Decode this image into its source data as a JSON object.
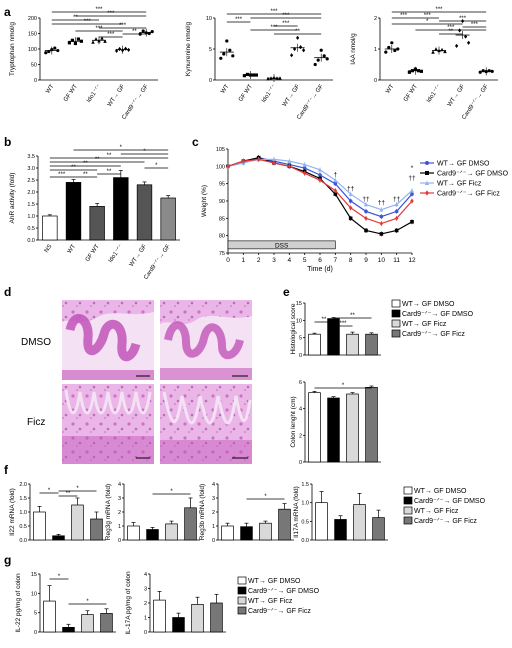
{
  "panels": {
    "a": "a",
    "b": "b",
    "c": "c",
    "d": "d",
    "e": "e",
    "f": "f",
    "g": "g"
  },
  "sig": {
    "three": "***",
    "two": "**",
    "one": "*",
    "dagger": "†",
    "ddagger": "††"
  },
  "colors": {
    "blue": "#3a55d8",
    "red": "#e23a3a",
    "lightblue": "#8fb4f0",
    "black": "#000000",
    "gray_light": "#d9d9d9",
    "gray_dark": "#777777",
    "he_purple": "#c254b8",
    "he_pink": "#eab6e8"
  },
  "chart_data": [
    {
      "type": "scatter",
      "panel": "a",
      "ylabel": "Tryptophan nmol/g",
      "categories": [
        "WT",
        "GF WT",
        "Ido1⁻ᐟ⁻",
        "WT→ GF",
        "Card9⁻ᐟ⁻→ GF"
      ],
      "yticks": [
        "0",
        "50",
        "100",
        "150",
        "200"
      ],
      "ylim": [
        0,
        200
      ],
      "means": [
        95,
        125,
        128,
        98,
        153
      ],
      "points": [
        [
          88,
          92,
          98,
          103,
          95
        ],
        [
          120,
          128,
          118,
          132,
          125
        ],
        [
          122,
          132,
          126,
          135,
          125
        ],
        [
          94,
          100,
          96,
          101,
          97
        ],
        [
          148,
          158,
          152,
          150,
          156
        ]
      ],
      "markers": [
        "circle",
        "square",
        "triangle",
        "diamond",
        "circle"
      ]
    },
    {
      "type": "scatter",
      "panel": "a",
      "ylabel": "Kynurenine nmol/g",
      "categories": [
        "WT",
        "GF WT",
        "Ido1⁻ᐟ⁻",
        "WT→ GF",
        "Card9⁻ᐟ⁻→ GF"
      ],
      "yticks": [
        "0",
        "5",
        "10"
      ],
      "ylim": [
        0,
        10
      ],
      "means": [
        4.5,
        0.8,
        0.3,
        5.2,
        3.6
      ],
      "points": [
        [
          3.5,
          4.2,
          6.3,
          4.8,
          3.9
        ],
        [
          0.7,
          0.9,
          0.8,
          0.8,
          0.8
        ],
        [
          0.2,
          0.3,
          0.4,
          0.3,
          0.3
        ],
        [
          4.0,
          5.0,
          6.8,
          5.3,
          4.8
        ],
        [
          2.5,
          3.2,
          4.8,
          3.9,
          3.4
        ]
      ],
      "markers": [
        "circle",
        "square",
        "triangle",
        "diamond",
        "circle"
      ]
    },
    {
      "type": "scatter",
      "panel": "a",
      "ylabel": "IAA nmol/g",
      "categories": [
        "WT",
        "GF WT",
        "Ido1⁻ᐟ⁻",
        "WT→ GF",
        "Card9⁻ᐟ⁻→ GF"
      ],
      "yticks": [
        "0",
        "1",
        "2"
      ],
      "ylim": [
        0,
        2
      ],
      "means": [
        1.0,
        0.3,
        0.95,
        1.45,
        0.28
      ],
      "points": [
        [
          0.9,
          1.05,
          1.2,
          0.95,
          1.0
        ],
        [
          0.25,
          0.3,
          0.35,
          0.3,
          0.28
        ],
        [
          0.9,
          1.0,
          0.95,
          0.98,
          0.92
        ],
        [
          1.1,
          1.6,
          1.9,
          1.4,
          1.2
        ],
        [
          0.25,
          0.3,
          0.27,
          0.3,
          0.28
        ]
      ],
      "markers": [
        "circle",
        "square",
        "triangle",
        "diamond",
        "circle"
      ]
    },
    {
      "type": "bar",
      "panel": "b",
      "ylabel": "AhR activity (fold)",
      "categories": [
        "NS",
        "WT",
        "GF WT",
        "Ido1⁻ᐟ⁻",
        "WT→ GF",
        "Card9⁻ᐟ⁻→ GF"
      ],
      "values": [
        1.0,
        2.4,
        1.4,
        2.6,
        2.3,
        1.75
      ],
      "errors": [
        0.05,
        0.12,
        0.12,
        0.3,
        0.12,
        0.1
      ],
      "yticks": [
        "0.0",
        "0.5",
        "1.0",
        "1.5",
        "2.0",
        "2.5",
        "3.0",
        "3.5"
      ],
      "ylim": [
        0,
        3.5
      ]
    },
    {
      "type": "line",
      "panel": "c",
      "ylabel": "Weight (%)",
      "xlabel": "Time (d)",
      "x": [
        0,
        1,
        2,
        3,
        4,
        5,
        6,
        7,
        8,
        9,
        10,
        11,
        12
      ],
      "xticks": [
        "0",
        "1",
        "2",
        "3",
        "4",
        "5",
        "6",
        "7",
        "8",
        "9",
        "10",
        "11",
        "12"
      ],
      "yticks": [
        "75",
        "80",
        "85",
        "90",
        "95",
        "100",
        "105"
      ],
      "ylim": [
        75,
        105
      ],
      "bar_label": "DSS",
      "bar_range": [
        0,
        7
      ],
      "series": [
        {
          "name": "WT→ GF DMSO",
          "color": "#3a55d8",
          "marker": "circle",
          "values": [
            100,
            101,
            102.5,
            101.5,
            100.5,
            99.5,
            97.5,
            95,
            90,
            87,
            85.5,
            87,
            92
          ]
        },
        {
          "name": "Card9⁻ᐟ⁻→ GF DMSO",
          "color": "#000000",
          "marker": "square",
          "values": [
            100,
            101.5,
            102.5,
            101,
            100,
            98.5,
            96.5,
            92,
            85,
            81.5,
            80.5,
            81.5,
            84
          ]
        },
        {
          "name": "WT→ GF Ficz",
          "color": "#8fb4f0",
          "marker": "triangle",
          "values": [
            100,
            101,
            102,
            102,
            101.5,
            100.5,
            99,
            96,
            92,
            89,
            87.5,
            89,
            93
          ]
        },
        {
          "name": "Card9⁻ᐟ⁻→ GF Ficz",
          "color": "#e23a3a",
          "marker": "diamond",
          "values": [
            100,
            101.5,
            102,
            101,
            100,
            98,
            96,
            93,
            88,
            85,
            83.5,
            85,
            90
          ]
        }
      ],
      "annotations": [
        {
          "x": 7,
          "y": 97,
          "text": "†"
        },
        {
          "x": 8,
          "y": 93,
          "text": "††"
        },
        {
          "x": 9,
          "y": 90,
          "text": "††"
        },
        {
          "x": 10,
          "y": 89,
          "text": "††"
        },
        {
          "x": 11,
          "y": 90,
          "text": "††"
        },
        {
          "x": 12,
          "y": 96,
          "text": "††"
        },
        {
          "x": 12,
          "y": 99,
          "text": "*"
        }
      ]
    },
    {
      "type": "bar",
      "panel": "e",
      "ylabel": "Histological score",
      "categories": [
        "WT→ GF DMSO",
        "Card9⁻ᐟ⁻→ GF DMSO",
        "WT→ GF Ficz",
        "Card9⁻ᐟ⁻→ GF Ficz"
      ],
      "values": [
        6,
        10.5,
        6,
        6
      ],
      "errors": [
        0.3,
        0.3,
        0.6,
        0.4
      ],
      "yticks": [
        "0",
        "5",
        "10",
        "15"
      ],
      "ylim": [
        0,
        15
      ],
      "legend": [
        "WT→ GF DMSO",
        "Card9⁻ᐟ⁻→ GF DMSO",
        "WT→ GF Ficz",
        "Card9⁻ᐟ⁻→ GF Ficz"
      ]
    },
    {
      "type": "bar",
      "panel": "e",
      "ylabel": "Colon lenght (cm)",
      "categories": [
        "WT→ GF DMSO",
        "Card9⁻ᐟ⁻→ GF DMSO",
        "WT→ GF Ficz",
        "Card9⁻ᐟ⁻→ GF Ficz"
      ],
      "values": [
        5.2,
        4.8,
        5.1,
        5.6
      ],
      "errors": [
        0.1,
        0.1,
        0.1,
        0.1
      ],
      "yticks": [
        "0",
        "2",
        "4",
        "6"
      ],
      "ylim": [
        0,
        6
      ]
    },
    {
      "type": "bar",
      "panel": "f",
      "ylabel": "Il22 mRNA (fold)",
      "categories": [
        "WT→ GF DMSO",
        "Card9⁻ᐟ⁻→ GF DMSO",
        "WT→ GF Ficz",
        "Card9⁻ᐟ⁻→ GF Ficz"
      ],
      "values": [
        1.0,
        0.15,
        1.25,
        0.75
      ],
      "errors": [
        0.2,
        0.05,
        0.25,
        0.25
      ],
      "yticks": [
        "0.0",
        "0.5",
        "1.0",
        "1.5",
        "2.0"
      ],
      "ylim": [
        0,
        2
      ]
    },
    {
      "type": "bar",
      "panel": "f",
      "ylabel": "Reg3g mRNA (fold)",
      "categories": [
        "WT→ GF DMSO",
        "Card9⁻ᐟ⁻→ GF DMSO",
        "WT→ GF Ficz",
        "Card9⁻ᐟ⁻→ GF Ficz"
      ],
      "values": [
        1.0,
        0.75,
        1.15,
        2.3
      ],
      "errors": [
        0.25,
        0.15,
        0.2,
        0.7
      ],
      "yticks": [
        "0",
        "1",
        "2",
        "3",
        "4"
      ],
      "ylim": [
        0,
        4
      ]
    },
    {
      "type": "bar",
      "panel": "f",
      "ylabel": "Reg3b mRNA (fold)",
      "categories": [
        "WT→ GF DMSO",
        "Card9⁻ᐟ⁻→ GF DMSO",
        "WT→ GF Ficz",
        "Card9⁻ᐟ⁻→ GF Ficz"
      ],
      "values": [
        1.0,
        0.95,
        1.2,
        2.2
      ],
      "errors": [
        0.2,
        0.25,
        0.15,
        0.4
      ],
      "yticks": [
        "0",
        "1",
        "2",
        "3",
        "4"
      ],
      "ylim": [
        0,
        4
      ]
    },
    {
      "type": "bar",
      "panel": "f",
      "ylabel": "Il17A mRNA (fold)",
      "categories": [
        "WT→ GF DMSO",
        "Card9⁻ᐟ⁻→ GF DMSO",
        "WT→ GF Ficz",
        "Card9⁻ᐟ⁻→ GF Ficz"
      ],
      "values": [
        1.0,
        0.55,
        0.95,
        0.6
      ],
      "errors": [
        0.3,
        0.1,
        0.3,
        0.2
      ],
      "yticks": [
        "0.0",
        "0.5",
        "1.0",
        "1.5"
      ],
      "ylim": [
        0,
        1.5
      ],
      "legend": [
        "WT→ GF DMSO",
        "Card9⁻ᐟ⁻→ GF DMSO",
        "WT→ GF Ficz",
        "Card9⁻ᐟ⁻→ GF Ficz"
      ]
    },
    {
      "type": "bar",
      "panel": "g",
      "ylabel": "IL-22 pg/mg of colon",
      "categories": [
        "WT→ GF DMSO",
        "Card9⁻ᐟ⁻→ GF DMSO",
        "WT→ GF Ficz",
        "Card9⁻ᐟ⁻→ GF Ficz"
      ],
      "values": [
        8,
        1.2,
        4.5,
        4.8
      ],
      "errors": [
        4,
        0.8,
        1,
        1.2
      ],
      "yticks": [
        "0",
        "5",
        "10",
        "15"
      ],
      "ylim": [
        0,
        15
      ]
    },
    {
      "type": "bar",
      "panel": "g",
      "ylabel": "IL-17A pg/mg of colon",
      "categories": [
        "WT→ GF DMSO",
        "Card9⁻ᐟ⁻→ GF DMSO",
        "WT→ GF Ficz",
        "Card9⁻ᐟ⁻→ GF Ficz"
      ],
      "values": [
        2.2,
        1.0,
        1.9,
        2.0
      ],
      "errors": [
        0.6,
        0.3,
        0.5,
        0.6
      ],
      "yticks": [
        "0",
        "1",
        "2",
        "3",
        "4"
      ],
      "ylim": [
        0,
        4
      ],
      "legend": [
        "WT→ GF DMSO",
        "Card9⁻ᐟ⁻→ GF DMSO",
        "WT→ GF Ficz",
        "Card9⁻ᐟ⁻→ GF Ficz"
      ]
    }
  ],
  "histology": {
    "row_labels": [
      "DMSO",
      "Ficz"
    ]
  }
}
